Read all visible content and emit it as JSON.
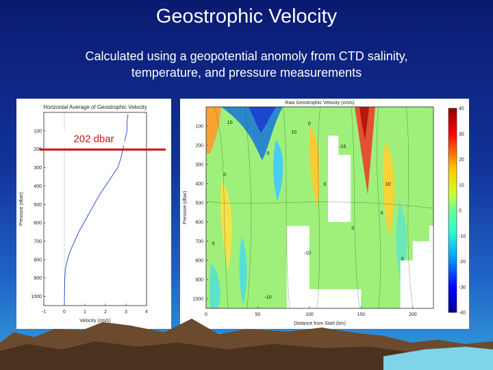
{
  "slide": {
    "title": "Geostrophic Velocity",
    "subtitle_line1": "Calculated using a geopotential anomoly from CTD salinity,",
    "subtitle_line2": "temperature, and pressure measurements"
  },
  "chart_data": [
    {
      "type": "line",
      "title": "Horizontal Average of Geostrophic Velocity",
      "xlabel": "Velocity (cm/s)",
      "ylabel": "Pressure (dbar)",
      "xlim": [
        -1,
        4
      ],
      "ylim": [
        1050,
        0
      ],
      "xticks": [
        "-1",
        "0",
        "1",
        "2",
        "3",
        "4"
      ],
      "yticks": [
        "100",
        "200",
        "300",
        "400",
        "500",
        "600",
        "700",
        "800",
        "900",
        "1000"
      ],
      "series": [
        {
          "x": [
            3.1,
            3.05,
            3.05,
            2.95,
            2.85,
            2.75,
            2.6,
            2.3,
            2.0,
            1.7,
            1.45,
            1.2,
            0.95,
            0.7,
            0.5,
            0.3,
            0.15,
            0.05,
            0.02,
            0.0
          ],
          "y": [
            10,
            50,
            100,
            150,
            200,
            250,
            300,
            350,
            400,
            450,
            500,
            550,
            600,
            650,
            700,
            750,
            800,
            850,
            900,
            1050
          ]
        }
      ],
      "annotation": {
        "label": "202 dbar",
        "pressure": 202
      }
    },
    {
      "type": "heatmap",
      "title": "Raw Geostrophic Velocity (cm/s)",
      "xlabel": "Distance from Start (km)",
      "ylabel": "Pressure (dbar)",
      "xlim": [
        0,
        220
      ],
      "ylim": [
        1050,
        0
      ],
      "xticks": [
        "0",
        "50",
        "100",
        "150",
        "200"
      ],
      "yticks": [
        "100",
        "200",
        "300",
        "400",
        "500",
        "600",
        "700",
        "800",
        "900",
        "1000"
      ],
      "colorbar": {
        "min": -40,
        "max": 40,
        "ticks": [
          "40",
          "30",
          "20",
          "10",
          "0",
          "-10",
          "-20",
          "-30",
          "-40"
        ]
      },
      "contour_labels": [
        {
          "text": "0",
          "x": 18,
          "y": 360
        },
        {
          "text": "0",
          "x": 60,
          "y": 250
        },
        {
          "text": "10",
          "x": 85,
          "y": 140
        },
        {
          "text": "0",
          "x": 100,
          "y": 95
        },
        {
          "text": "-10",
          "x": 98,
          "y": 770
        },
        {
          "text": "0",
          "x": 115,
          "y": 410
        },
        {
          "text": "-15",
          "x": 132,
          "y": 215
        },
        {
          "text": "0",
          "x": 142,
          "y": 640
        },
        {
          "text": "0",
          "x": 170,
          "y": 560
        },
        {
          "text": "10",
          "x": 176,
          "y": 410
        },
        {
          "text": "0",
          "x": 190,
          "y": 800
        },
        {
          "text": "10",
          "x": 23,
          "y": 90
        },
        {
          "text": "0",
          "x": 7,
          "y": 720
        },
        {
          "text": "-10",
          "x": 60,
          "y": 1000
        }
      ]
    }
  ]
}
